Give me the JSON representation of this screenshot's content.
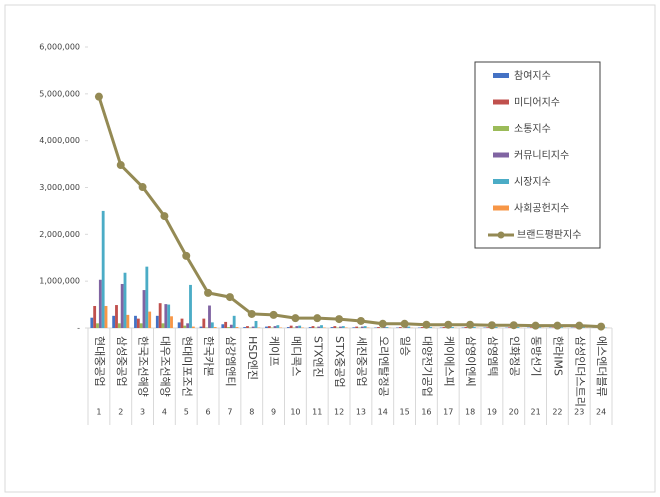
{
  "chart_data": {
    "type": "bar",
    "categories": [
      "현대중공업",
      "삼성중공업",
      "한국조선해양",
      "대우조선해양",
      "현대미포조선",
      "한국카본",
      "삼강엠앤티",
      "HSD엔진",
      "케이프",
      "메디콕스",
      "STX엔진",
      "STX중공업",
      "세진중공업",
      "오리엔탈정공",
      "일승",
      "대양전기공업",
      "케이에스피",
      "삼영이엔씨",
      "삼영엠텍",
      "인화정공",
      "동방선기",
      "한라IMS",
      "삼성인더스트리",
      "에스엔더블류"
    ],
    "ranks": [
      1,
      2,
      3,
      4,
      5,
      6,
      7,
      8,
      9,
      10,
      11,
      12,
      13,
      14,
      15,
      16,
      17,
      18,
      19,
      20,
      21,
      22,
      23,
      24
    ],
    "series": [
      {
        "name": "참여지수",
        "color": "#4472c4",
        "values": [
          220000,
          260000,
          260000,
          260000,
          120000,
          30000,
          80000,
          20000,
          30000,
          20000,
          20000,
          20000,
          15000,
          10000,
          10000,
          10000,
          10000,
          10000,
          10000,
          8000,
          8000,
          8000,
          8000,
          5000
        ]
      },
      {
        "name": "미디어지수",
        "color": "#c0504d",
        "values": [
          470000,
          490000,
          200000,
          530000,
          200000,
          200000,
          130000,
          40000,
          40000,
          50000,
          40000,
          40000,
          30000,
          20000,
          20000,
          20000,
          20000,
          20000,
          15000,
          15000,
          15000,
          10000,
          10000,
          8000
        ]
      },
      {
        "name": "소통지수",
        "color": "#9bbb59",
        "values": [
          100000,
          100000,
          100000,
          100000,
          50000,
          10000,
          20000,
          10000,
          10000,
          10000,
          10000,
          10000,
          10000,
          5000,
          5000,
          5000,
          5000,
          5000,
          5000,
          5000,
          5000,
          5000,
          5000,
          3000
        ]
      },
      {
        "name": "커뮤니티지수",
        "color": "#8064a2",
        "values": [
          1030000,
          940000,
          810000,
          510000,
          100000,
          480000,
          70000,
          30000,
          40000,
          40000,
          30000,
          30000,
          30000,
          20000,
          20000,
          15000,
          15000,
          15000,
          15000,
          10000,
          10000,
          10000,
          10000,
          5000
        ]
      },
      {
        "name": "시장지수",
        "color": "#4bacc6",
        "values": [
          2500000,
          1180000,
          1310000,
          500000,
          920000,
          120000,
          260000,
          150000,
          60000,
          50000,
          60000,
          40000,
          40000,
          20000,
          30000,
          20000,
          20000,
          20000,
          20000,
          20000,
          15000,
          15000,
          15000,
          10000
        ]
      },
      {
        "name": "사회공헌지수",
        "color": "#f79646",
        "values": [
          470000,
          280000,
          350000,
          250000,
          30000,
          20000,
          20000,
          10000,
          10000,
          10000,
          10000,
          10000,
          10000,
          5000,
          5000,
          5000,
          5000,
          5000,
          5000,
          5000,
          5000,
          5000,
          5000,
          3000
        ]
      }
    ],
    "line": {
      "name": "브랜드평판지수",
      "color": "#948a54",
      "values": [
        4940000,
        3480000,
        3010000,
        2390000,
        1540000,
        750000,
        660000,
        300000,
        280000,
        210000,
        210000,
        190000,
        150000,
        90000,
        90000,
        70000,
        70000,
        70000,
        60000,
        60000,
        50000,
        50000,
        50000,
        30000
      ]
    },
    "ylim": [
      0,
      6000000
    ],
    "yticks": [
      {
        "value": 0,
        "label": "-"
      },
      {
        "value": 1000000,
        "label": "1,000,000"
      },
      {
        "value": 2000000,
        "label": "2,000,000"
      },
      {
        "value": 3000000,
        "label": "3,000,000"
      },
      {
        "value": 4000000,
        "label": "4,000,000"
      },
      {
        "value": 5000000,
        "label": "5,000,000"
      },
      {
        "value": 6000000,
        "label": "6,000,000"
      }
    ]
  }
}
